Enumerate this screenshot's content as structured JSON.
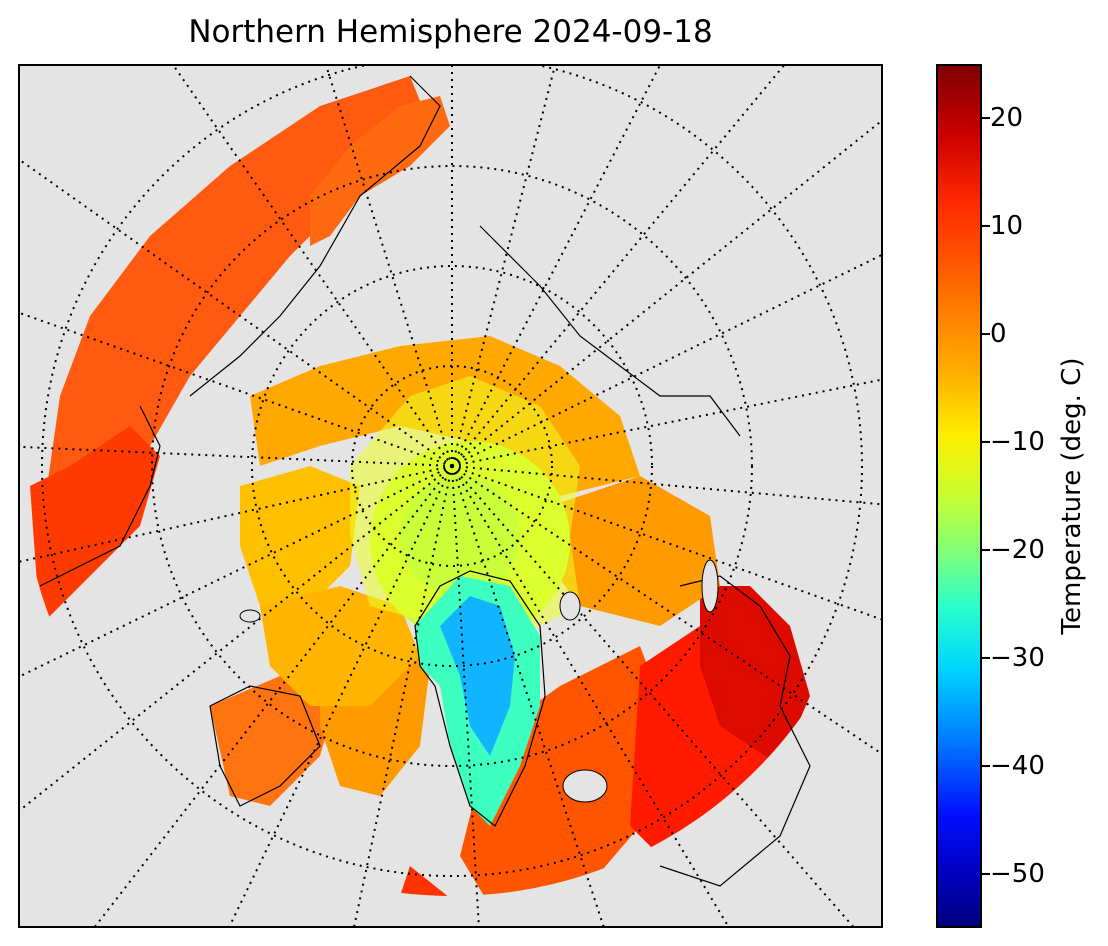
{
  "title": "Northern Hemisphere 2024-09-18",
  "colorbar": {
    "label": "Temperature (deg. C)",
    "ticks": [
      "20",
      "10",
      "0",
      "−10",
      "−20",
      "−30",
      "−40",
      "−50"
    ],
    "range": [
      -55,
      25
    ],
    "colormap": "jet"
  },
  "map": {
    "projection": "north polar stereographic",
    "background": "#e4e4e4",
    "graticule": "dotted",
    "colors": {
      "warm": "#ff2a00",
      "mild": "#ff8a00",
      "cold": "#ffe600",
      "polar": "#c6ff3a",
      "greenland_edge": "#2cffd0",
      "greenland_core": "#00b8ff"
    }
  }
}
